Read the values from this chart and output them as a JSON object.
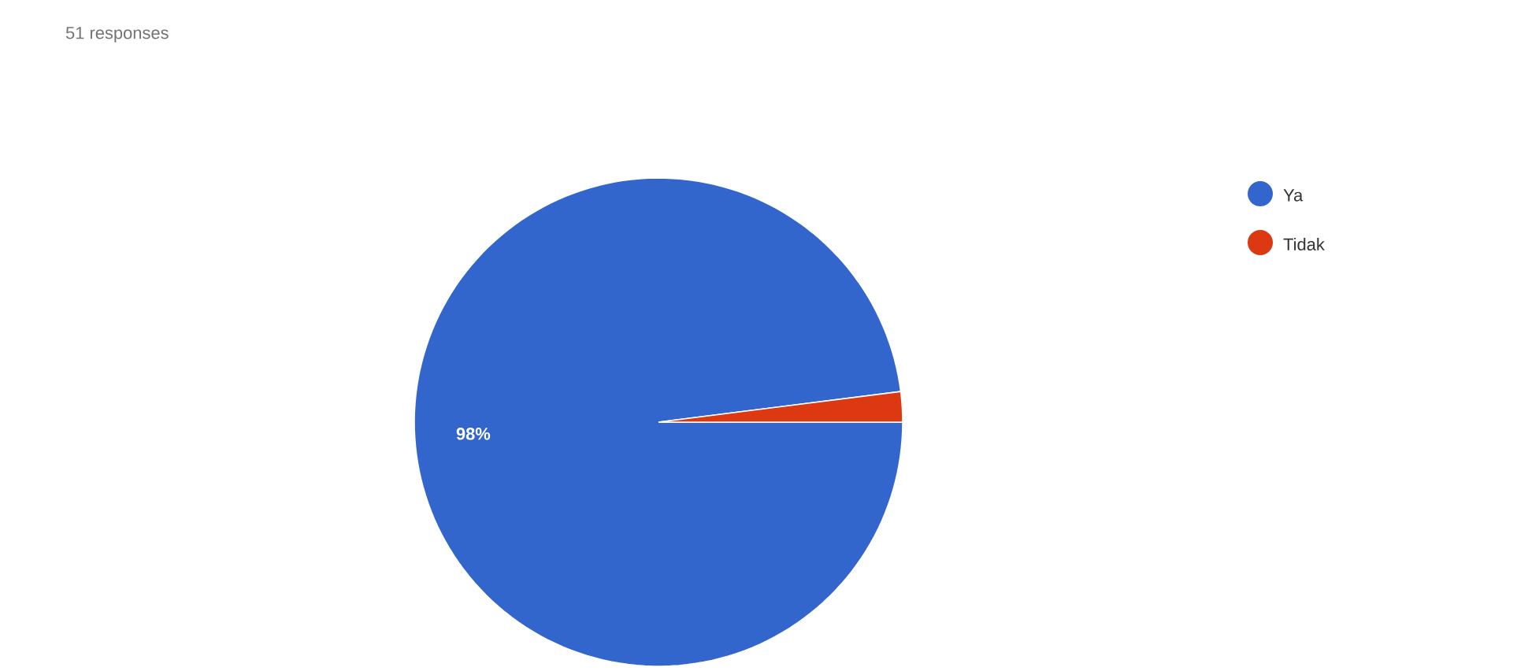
{
  "chart_data": {
    "type": "pie",
    "title": "51 responses",
    "categories": [
      "Ya",
      "Tidak"
    ],
    "values": [
      98,
      2
    ],
    "colors": [
      "#3366cc",
      "#dc3912"
    ],
    "value_labels": [
      "98%",
      null
    ],
    "legend": "top right"
  }
}
